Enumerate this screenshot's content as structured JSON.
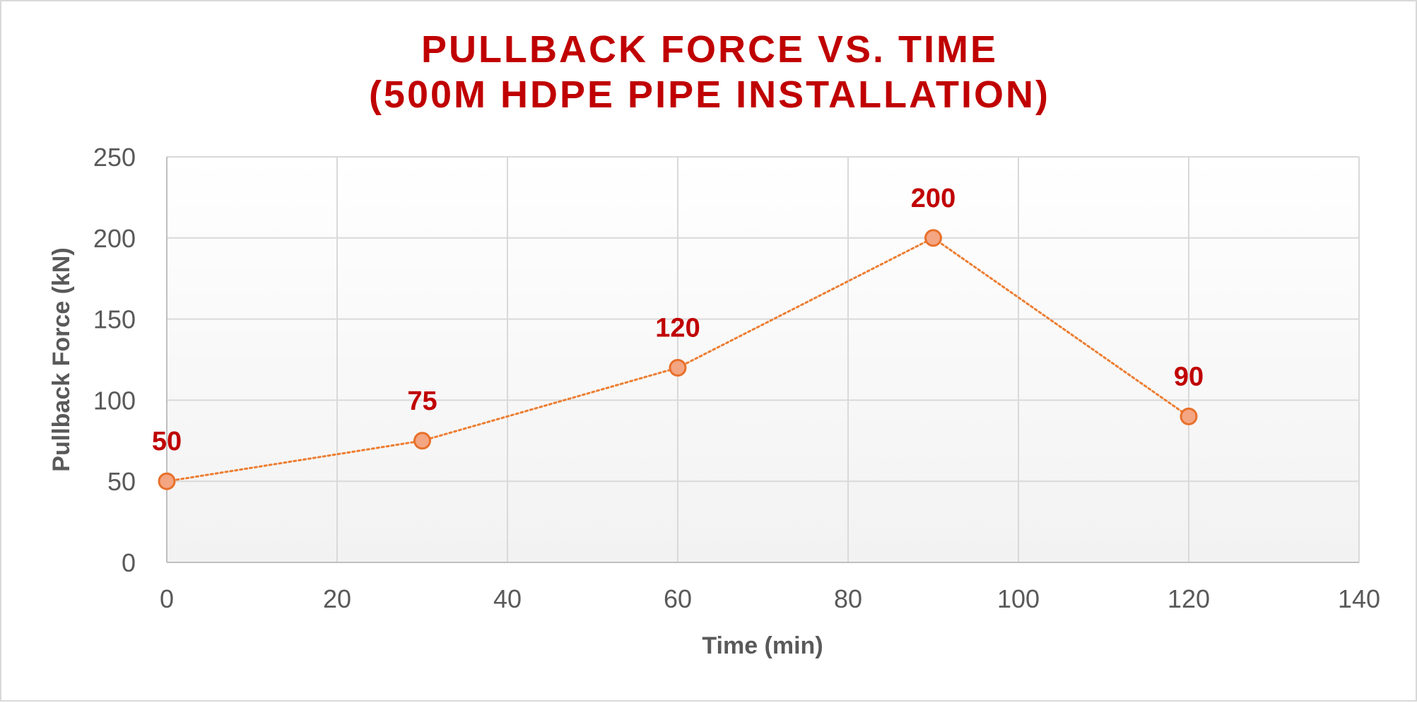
{
  "chart_data": {
    "type": "line",
    "title": [
      "PULLBACK FORCE VS. TIME",
      "(500M HDPE PIPE INSTALLATION)"
    ],
    "xlabel": "Time (min)",
    "ylabel": "Pullback Force (kN)",
    "xlim": [
      0,
      140
    ],
    "ylim": [
      0,
      250
    ],
    "xticks": [
      0,
      20,
      40,
      60,
      80,
      100,
      120,
      140
    ],
    "yticks": [
      0,
      50,
      100,
      150,
      200,
      250
    ],
    "grid": true,
    "legend": "none",
    "series": [
      {
        "x": [
          0,
          30,
          60,
          90,
          120
        ],
        "y": [
          50,
          75,
          120,
          200,
          90
        ],
        "data_labels": [
          "50",
          "75",
          "120",
          "200",
          "90"
        ],
        "line_style": "dotted"
      }
    ]
  },
  "colors": {
    "title": "#c00000",
    "data_label": "#c00000",
    "line": "#ed7d31",
    "marker_fill": "#f4a582",
    "marker_stroke": "#e8702a",
    "grid": "#d9d9d9",
    "axis": "#bfbfbf",
    "plot_bg_top": "#ffffff",
    "plot_bg_bottom": "#f2f2f2"
  }
}
